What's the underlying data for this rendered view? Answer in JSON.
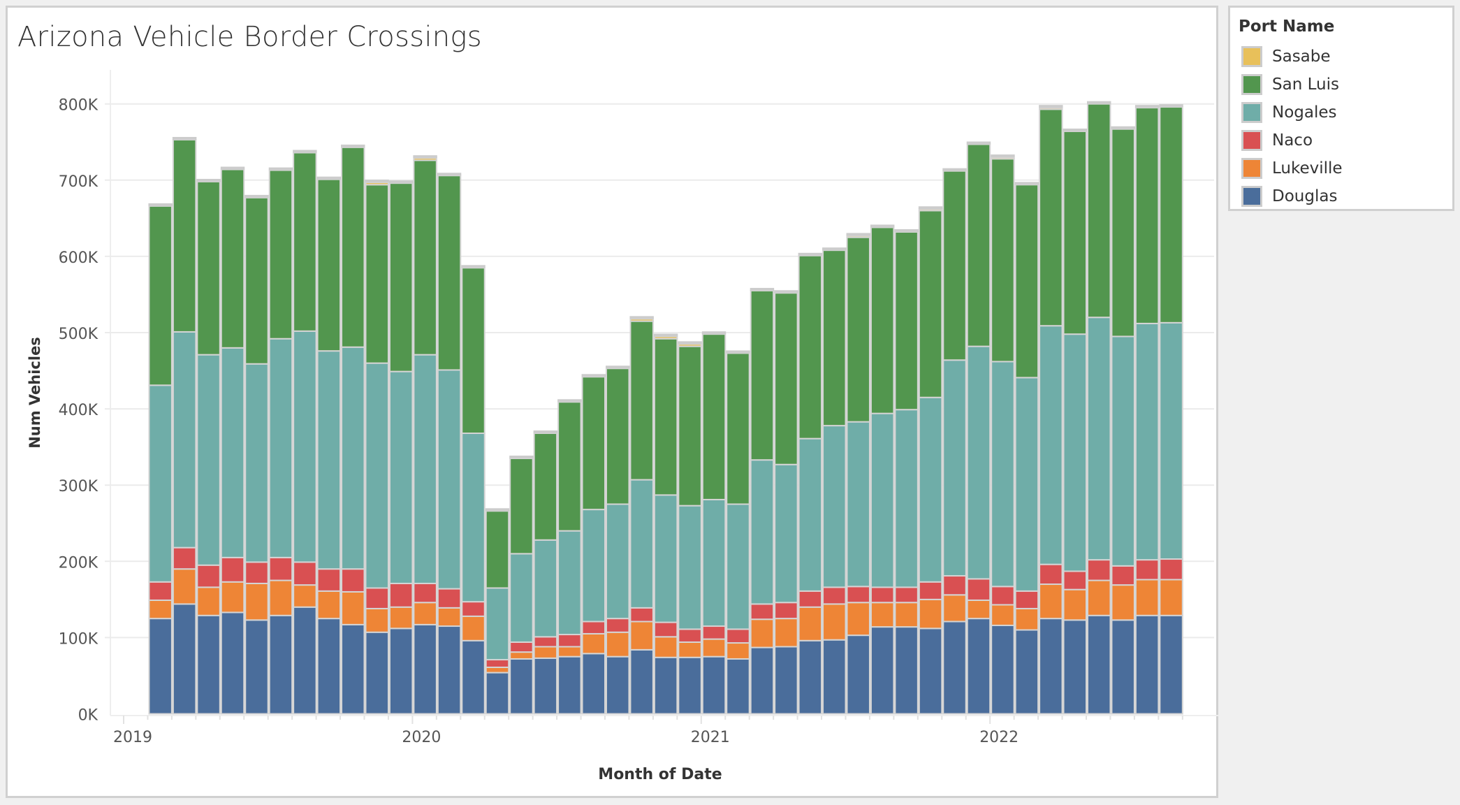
{
  "chart_data": {
    "type": "bar",
    "stacked": true,
    "title": "Arizona Vehicle Border Crossings",
    "xlabel": "Month of Date",
    "ylabel": "Num Vehicles",
    "ylim": [
      0,
      800000
    ],
    "yticks": [
      0,
      100000,
      200000,
      300000,
      400000,
      500000,
      600000,
      700000,
      800000
    ],
    "ytick_labels": [
      "0K",
      "100K",
      "200K",
      "300K",
      "400K",
      "500K",
      "600K",
      "700K",
      "800K"
    ],
    "xtick_labels": [
      "2019",
      "2020",
      "2021",
      "2022"
    ],
    "xtick_years": [
      2019,
      2020,
      2021,
      2022
    ],
    "grid": true,
    "legend_title": "Port Name",
    "legend_position": "right",
    "start_month": "2019-02",
    "categories": [
      "2019-02",
      "2019-03",
      "2019-04",
      "2019-05",
      "2019-06",
      "2019-07",
      "2019-08",
      "2019-09",
      "2019-10",
      "2019-11",
      "2019-12",
      "2020-01",
      "2020-02",
      "2020-03",
      "2020-04",
      "2020-05",
      "2020-06",
      "2020-07",
      "2020-08",
      "2020-09",
      "2020-10",
      "2020-11",
      "2020-12",
      "2021-01",
      "2021-02",
      "2021-03",
      "2021-04",
      "2021-05",
      "2021-06",
      "2021-07",
      "2021-08",
      "2021-09",
      "2021-10",
      "2021-11",
      "2021-12",
      "2022-01",
      "2022-02",
      "2022-03",
      "2022-04",
      "2022-05",
      "2022-06",
      "2022-07",
      "2022-08"
    ],
    "series": [
      {
        "name": "Douglas",
        "color": "#4a6d9b",
        "values": [
          125000,
          144000,
          129000,
          133000,
          123000,
          129000,
          140000,
          125000,
          117000,
          107000,
          112000,
          117000,
          115000,
          96000,
          54000,
          72000,
          73000,
          75000,
          79000,
          75000,
          84000,
          74000,
          74000,
          75000,
          72000,
          87000,
          88000,
          96000,
          97000,
          103000,
          114000,
          114000,
          112000,
          121000,
          125000,
          116000,
          110000,
          125000,
          123000,
          129000,
          123000,
          129000,
          129000
        ]
      },
      {
        "name": "Lukeville",
        "color": "#ee8536",
        "values": [
          24000,
          46000,
          37000,
          40000,
          48000,
          46000,
          29000,
          36000,
          43000,
          31000,
          28000,
          29000,
          24000,
          32000,
          7000,
          9000,
          15000,
          13000,
          26000,
          32000,
          37000,
          27000,
          20000,
          23000,
          21000,
          37000,
          37000,
          44000,
          47000,
          43000,
          32000,
          32000,
          38000,
          35000,
          24000,
          27000,
          28000,
          45000,
          40000,
          46000,
          46000,
          47000,
          47000
        ]
      },
      {
        "name": "Naco",
        "color": "#d95052",
        "values": [
          24000,
          28000,
          29000,
          32000,
          28000,
          30000,
          30000,
          29000,
          30000,
          27000,
          31000,
          25000,
          25000,
          19000,
          10000,
          13000,
          13000,
          16000,
          16000,
          18000,
          18000,
          19000,
          17000,
          17000,
          18000,
          20000,
          21000,
          21000,
          22000,
          21000,
          20000,
          20000,
          23000,
          25000,
          28000,
          24000,
          23000,
          26000,
          24000,
          27000,
          25000,
          26000,
          27000
        ]
      },
      {
        "name": "Nogales",
        "color": "#6fada8",
        "values": [
          258000,
          283000,
          276000,
          275000,
          260000,
          287000,
          303000,
          286000,
          291000,
          295000,
          278000,
          300000,
          287000,
          221000,
          94000,
          116000,
          127000,
          136000,
          147000,
          150000,
          168000,
          167000,
          162000,
          166000,
          164000,
          189000,
          181000,
          200000,
          212000,
          216000,
          228000,
          233000,
          242000,
          283000,
          305000,
          295000,
          280000,
          313000,
          311000,
          318000,
          301000,
          310000,
          310000
        ]
      },
      {
        "name": "San Luis",
        "color": "#52964e",
        "values": [
          235000,
          252000,
          227000,
          234000,
          218000,
          221000,
          234000,
          225000,
          262000,
          234000,
          247000,
          255000,
          255000,
          217000,
          101000,
          125000,
          140000,
          169000,
          174000,
          178000,
          208000,
          205000,
          209000,
          217000,
          198000,
          222000,
          225000,
          240000,
          230000,
          242000,
          244000,
          233000,
          245000,
          248000,
          265000,
          266000,
          253000,
          284000,
          266000,
          280000,
          272000,
          283000,
          283000
        ]
      },
      {
        "name": "Sasabe",
        "color": "#e8c05a",
        "values": [
          0,
          0,
          0,
          0,
          0,
          0,
          0,
          0,
          0,
          3000,
          0,
          3000,
          0,
          0,
          0,
          0,
          0,
          0,
          0,
          0,
          3000,
          3000,
          3000,
          0,
          0,
          0,
          0,
          0,
          0,
          2000,
          0,
          0,
          2000,
          0,
          0,
          2000,
          0,
          2000,
          0,
          0,
          0,
          0,
          0
        ]
      }
    ]
  }
}
